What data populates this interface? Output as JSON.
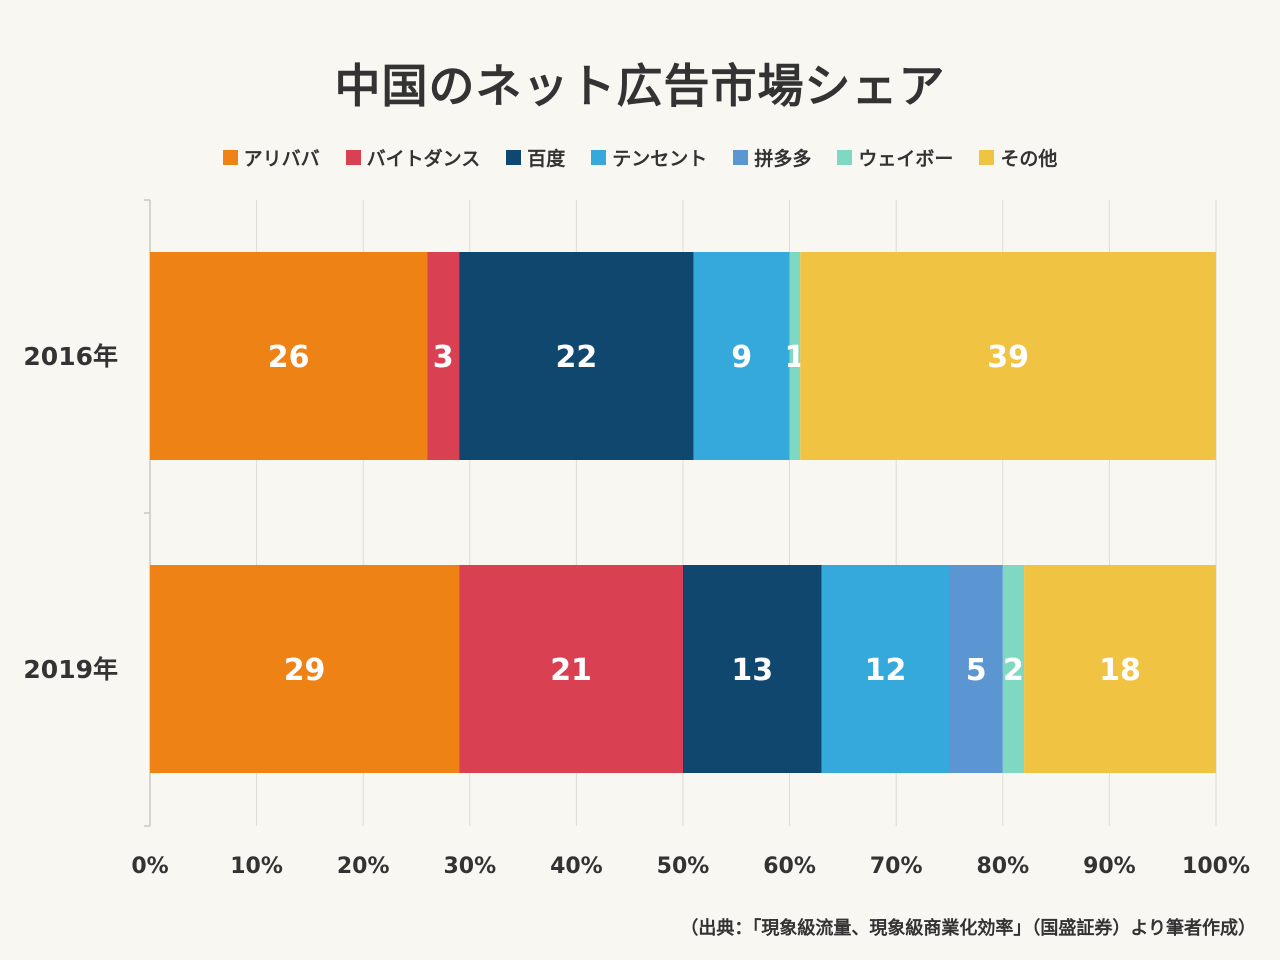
{
  "chart_data": {
    "type": "bar",
    "orientation": "horizontal",
    "stacked": true,
    "title": "中国のネット広告市場シェア",
    "categories": [
      "2016年",
      "2019年"
    ],
    "series": [
      {
        "name": "アリババ",
        "color": "#ef8215",
        "values": [
          26,
          29
        ]
      },
      {
        "name": "バイトダンス",
        "color": "#d94153",
        "values": [
          3,
          21
        ]
      },
      {
        "name": "百度",
        "color": "#0f476e",
        "values": [
          22,
          13
        ]
      },
      {
        "name": "テンセント",
        "color": "#36a9dc",
        "values": [
          9,
          12
        ]
      },
      {
        "name": "拼多多",
        "color": "#5b96d2",
        "values": [
          0,
          5
        ]
      },
      {
        "name": "ウェイボー",
        "color": "#7fd8c1",
        "values": [
          1,
          2
        ]
      },
      {
        "name": "その他",
        "color": "#f1c342",
        "values": [
          39,
          18
        ]
      }
    ],
    "xlim": [
      0,
      100
    ],
    "x_ticks": [
      "0%",
      "10%",
      "20%",
      "30%",
      "40%",
      "50%",
      "60%",
      "70%",
      "80%",
      "90%",
      "100%"
    ],
    "xlabel": "",
    "ylabel": "",
    "grid": true,
    "legend_position": "top",
    "data_labels": true
  },
  "source_note": "（出典：「現象級流量、現象級商業化効率」（国盛証券）より筆者作成）"
}
